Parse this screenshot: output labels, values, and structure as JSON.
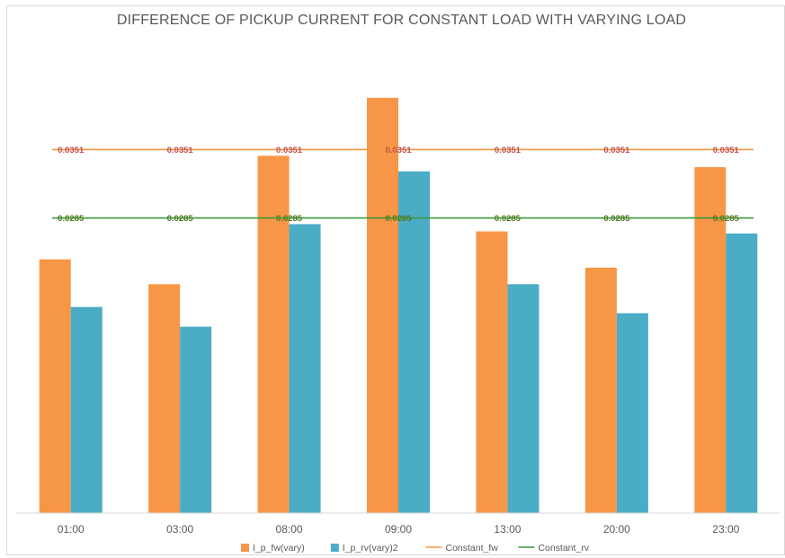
{
  "chart_data": {
    "type": "bar",
    "title": "DIFFERENCE OF PICKUP CURRENT FOR CONSTANT LOAD WITH VARYING LOAD",
    "xlabel": "",
    "ylabel": "",
    "categories": [
      "01:00",
      "03:00",
      "08:00",
      "09:00",
      "13:00",
      "20:00",
      "23:00"
    ],
    "ylim": [
      0,
      0.04
    ],
    "grid": false,
    "legend_position": "bottom",
    "series": [
      {
        "name": "I_p_fw(vary)",
        "kind": "bar",
        "color": "#F79646",
        "values": [
          0.0245,
          0.0221,
          0.0345,
          0.0401,
          0.0272,
          0.0237,
          0.0334
        ]
      },
      {
        "name": "I_p_rv(vary)2",
        "kind": "bar",
        "color": "#4BACC6",
        "values": [
          0.0199,
          0.018,
          0.0279,
          0.033,
          0.0221,
          0.0193,
          0.027
        ]
      },
      {
        "name": "Constant_fw",
        "kind": "line",
        "color": "#F79646",
        "label_color": "#C0504D",
        "values": [
          0.0351,
          0.0351,
          0.0351,
          0.0351,
          0.0351,
          0.0351,
          0.0351
        ],
        "labels": [
          "0.0351",
          "0.0351",
          "0.0351",
          "0.0351",
          "0.0351",
          "0.0351",
          "0.0351"
        ]
      },
      {
        "name": "Constant_rv",
        "kind": "line",
        "color": "#3A9A3E",
        "label_color": "#4E7A1D",
        "values": [
          0.0285,
          0.0285,
          0.0285,
          0.0285,
          0.0285,
          0.0285,
          0.0285
        ],
        "labels": [
          "0.0285",
          "0.0285",
          "0.0285",
          "0.0285",
          "0.0285",
          "0.0285",
          "0.0285"
        ]
      }
    ]
  }
}
